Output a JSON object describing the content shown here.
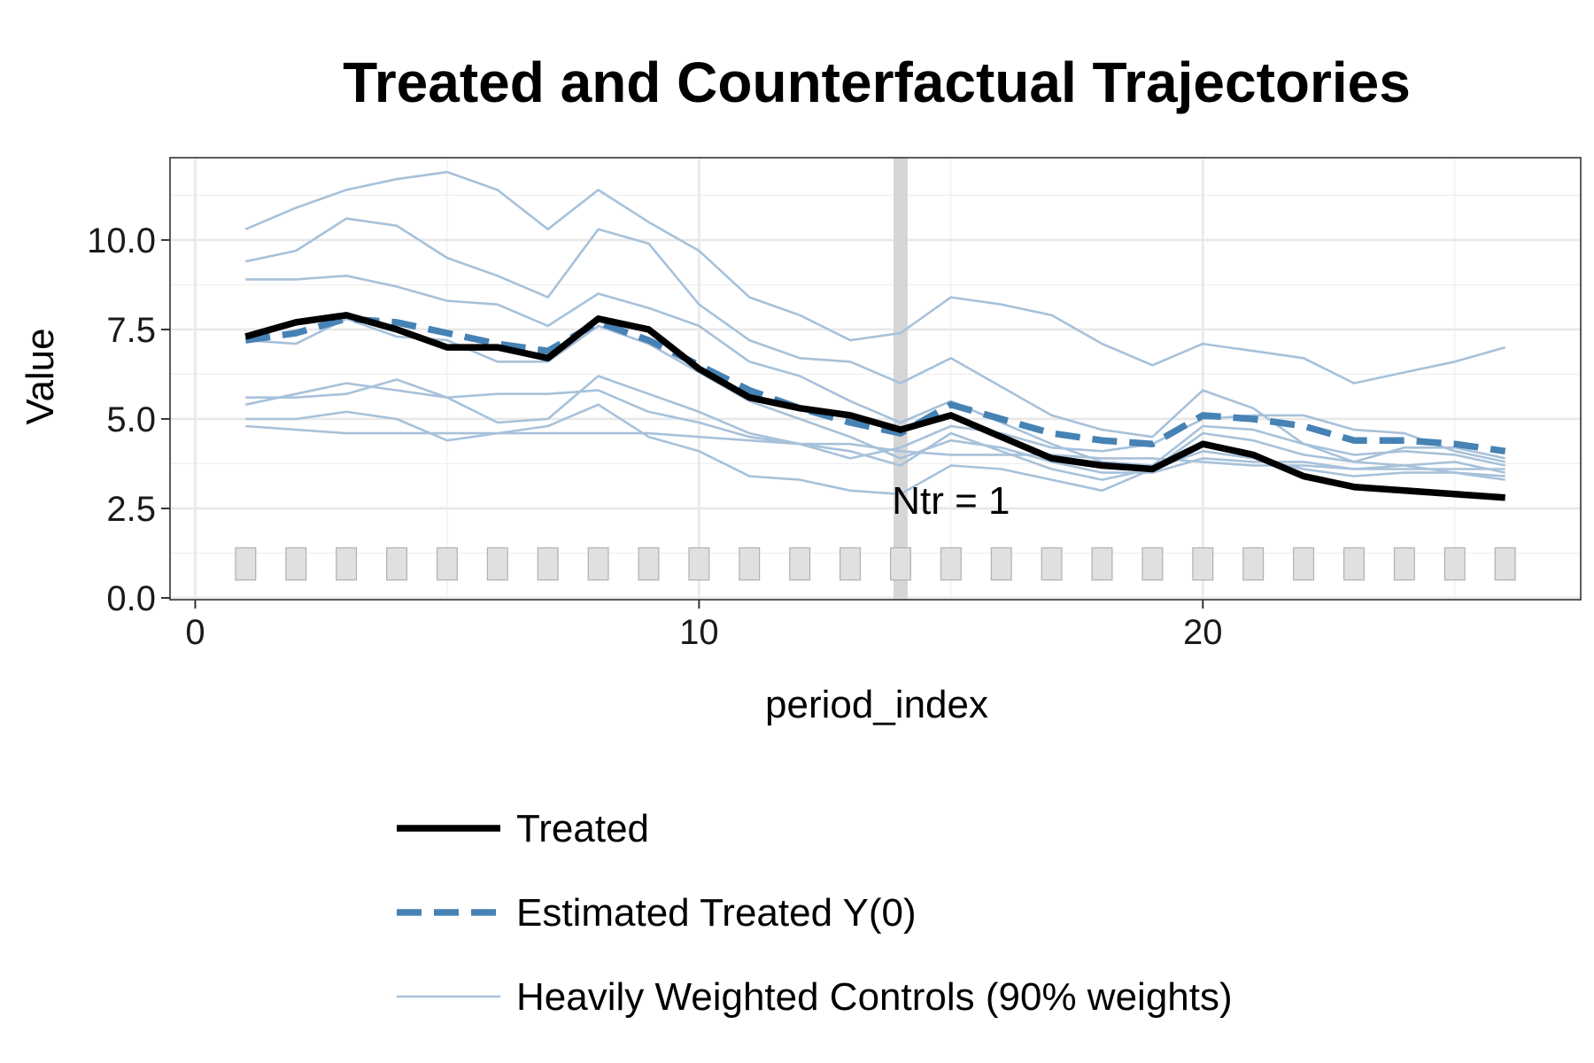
{
  "chart_data": {
    "type": "line",
    "title": "Treated and Counterfactual Trajectories",
    "xlabel": "period_index",
    "ylabel": "Value",
    "xlim": [
      -0.5,
      27.5
    ],
    "ylim": [
      -0.05,
      12.3
    ],
    "x_ticks": [
      0,
      10,
      20
    ],
    "x_tick_labels": [
      "0",
      "10",
      "20"
    ],
    "y_ticks": [
      0,
      2.5,
      5,
      7.5,
      10
    ],
    "y_tick_labels": [
      "0.0",
      "2.5",
      "5.0",
      "7.5",
      "10.0"
    ],
    "grid": true,
    "legend_position": "bottom",
    "treatment_start": 14,
    "annotation": {
      "text": "Ntr = 1",
      "x": 15,
      "y": 2.75
    },
    "count_bars": {
      "x": [
        1,
        2,
        3,
        4,
        5,
        6,
        7,
        8,
        9,
        10,
        11,
        12,
        13,
        14,
        15,
        16,
        17,
        18,
        19,
        20,
        21,
        22,
        23,
        24,
        25,
        26
      ],
      "value": 1
    },
    "series": [
      {
        "name": "Treated",
        "style": "solid",
        "color": "#000000",
        "x": [
          1,
          2,
          3,
          4,
          5,
          6,
          7,
          8,
          9,
          10,
          11,
          12,
          13,
          14,
          15,
          16,
          17,
          18,
          19,
          20,
          21,
          22,
          23,
          24,
          25,
          26
        ],
        "values": [
          7.3,
          7.7,
          7.9,
          7.5,
          7.0,
          7.0,
          6.7,
          7.8,
          7.5,
          6.4,
          5.6,
          5.3,
          5.1,
          4.7,
          5.1,
          4.5,
          3.9,
          3.7,
          3.6,
          4.3,
          4.0,
          3.4,
          3.1,
          3.0,
          2.9,
          2.8
        ]
      },
      {
        "name": "Estimated Treated Y(0)",
        "style": "dashed",
        "color": "#4682B4",
        "x": [
          1,
          2,
          3,
          4,
          5,
          6,
          7,
          8,
          9,
          10,
          11,
          12,
          13,
          14,
          15,
          16,
          17,
          18,
          19,
          20,
          21,
          22,
          23,
          24,
          25,
          26
        ],
        "values": [
          7.2,
          7.4,
          7.8,
          7.7,
          7.4,
          7.1,
          6.9,
          7.7,
          7.2,
          6.5,
          5.8,
          5.3,
          4.9,
          4.6,
          5.4,
          5.0,
          4.6,
          4.4,
          4.3,
          5.1,
          5.0,
          4.8,
          4.4,
          4.4,
          4.3,
          4.1
        ]
      },
      {
        "name": "Heavily Weighted Controls (90% weights)",
        "style": "thin",
        "color": "#A7C1DA",
        "x": [
          1,
          2,
          3,
          4,
          5,
          6,
          7,
          8,
          9,
          10,
          11,
          12,
          13,
          14,
          15,
          16,
          17,
          18,
          19,
          20,
          21,
          22,
          23,
          24,
          25,
          26
        ],
        "lines": [
          [
            10.3,
            10.9,
            11.4,
            11.7,
            11.9,
            11.4,
            10.3,
            11.4,
            10.5,
            9.7,
            8.4,
            7.9,
            7.2,
            7.4,
            8.4,
            8.2,
            7.9,
            7.1,
            6.5,
            7.1,
            6.9,
            6.7,
            6.0,
            6.3,
            6.6,
            7.0
          ],
          [
            9.4,
            9.7,
            10.6,
            10.4,
            9.5,
            9.0,
            8.4,
            10.3,
            9.9,
            8.2,
            7.2,
            6.7,
            6.6,
            6.0,
            6.7,
            5.9,
            5.1,
            4.7,
            4.5,
            5.8,
            5.3,
            4.3,
            3.8,
            3.7,
            3.8,
            3.5
          ],
          [
            8.9,
            8.9,
            9.0,
            8.7,
            8.3,
            8.2,
            7.6,
            8.5,
            8.1,
            7.6,
            6.6,
            6.2,
            5.5,
            4.9,
            5.5,
            4.9,
            4.3,
            3.8,
            3.7,
            4.8,
            4.7,
            4.3,
            4.0,
            4.1,
            4.0,
            3.7
          ],
          [
            7.2,
            7.1,
            7.8,
            7.3,
            7.2,
            6.6,
            6.6,
            7.6,
            7.1,
            6.3,
            5.5,
            5.0,
            4.5,
            3.9,
            4.4,
            4.2,
            3.8,
            3.5,
            3.5,
            3.9,
            3.8,
            3.8,
            3.6,
            3.7,
            3.5,
            3.4
          ],
          [
            5.6,
            5.6,
            5.7,
            6.1,
            5.6,
            4.9,
            5.0,
            6.2,
            5.7,
            5.2,
            4.6,
            4.3,
            4.1,
            3.7,
            4.6,
            4.1,
            3.6,
            3.3,
            3.6,
            4.6,
            4.4,
            4.0,
            3.8,
            4.2,
            4.2,
            3.9
          ],
          [
            5.4,
            5.7,
            6.0,
            5.8,
            5.6,
            5.7,
            5.7,
            5.8,
            5.2,
            4.9,
            4.5,
            4.3,
            3.9,
            4.2,
            4.8,
            4.6,
            4.2,
            4.1,
            4.3,
            5.0,
            5.1,
            5.1,
            4.7,
            4.6,
            4.1,
            3.8
          ],
          [
            5.0,
            5.0,
            5.2,
            5.0,
            4.4,
            4.6,
            4.8,
            5.4,
            4.5,
            4.1,
            3.4,
            3.3,
            3.0,
            2.9,
            3.7,
            3.6,
            3.3,
            3.0,
            3.6,
            4.1,
            3.9,
            3.6,
            3.4,
            3.5,
            3.5,
            3.3
          ],
          [
            4.8,
            4.7,
            4.6,
            4.6,
            4.6,
            4.6,
            4.6,
            4.6,
            4.6,
            4.5,
            4.4,
            4.3,
            4.3,
            4.1,
            4.0,
            4.0,
            4.0,
            3.9,
            3.9,
            3.8,
            3.7,
            3.7,
            3.6,
            3.6,
            3.6,
            3.6
          ]
        ]
      }
    ]
  }
}
